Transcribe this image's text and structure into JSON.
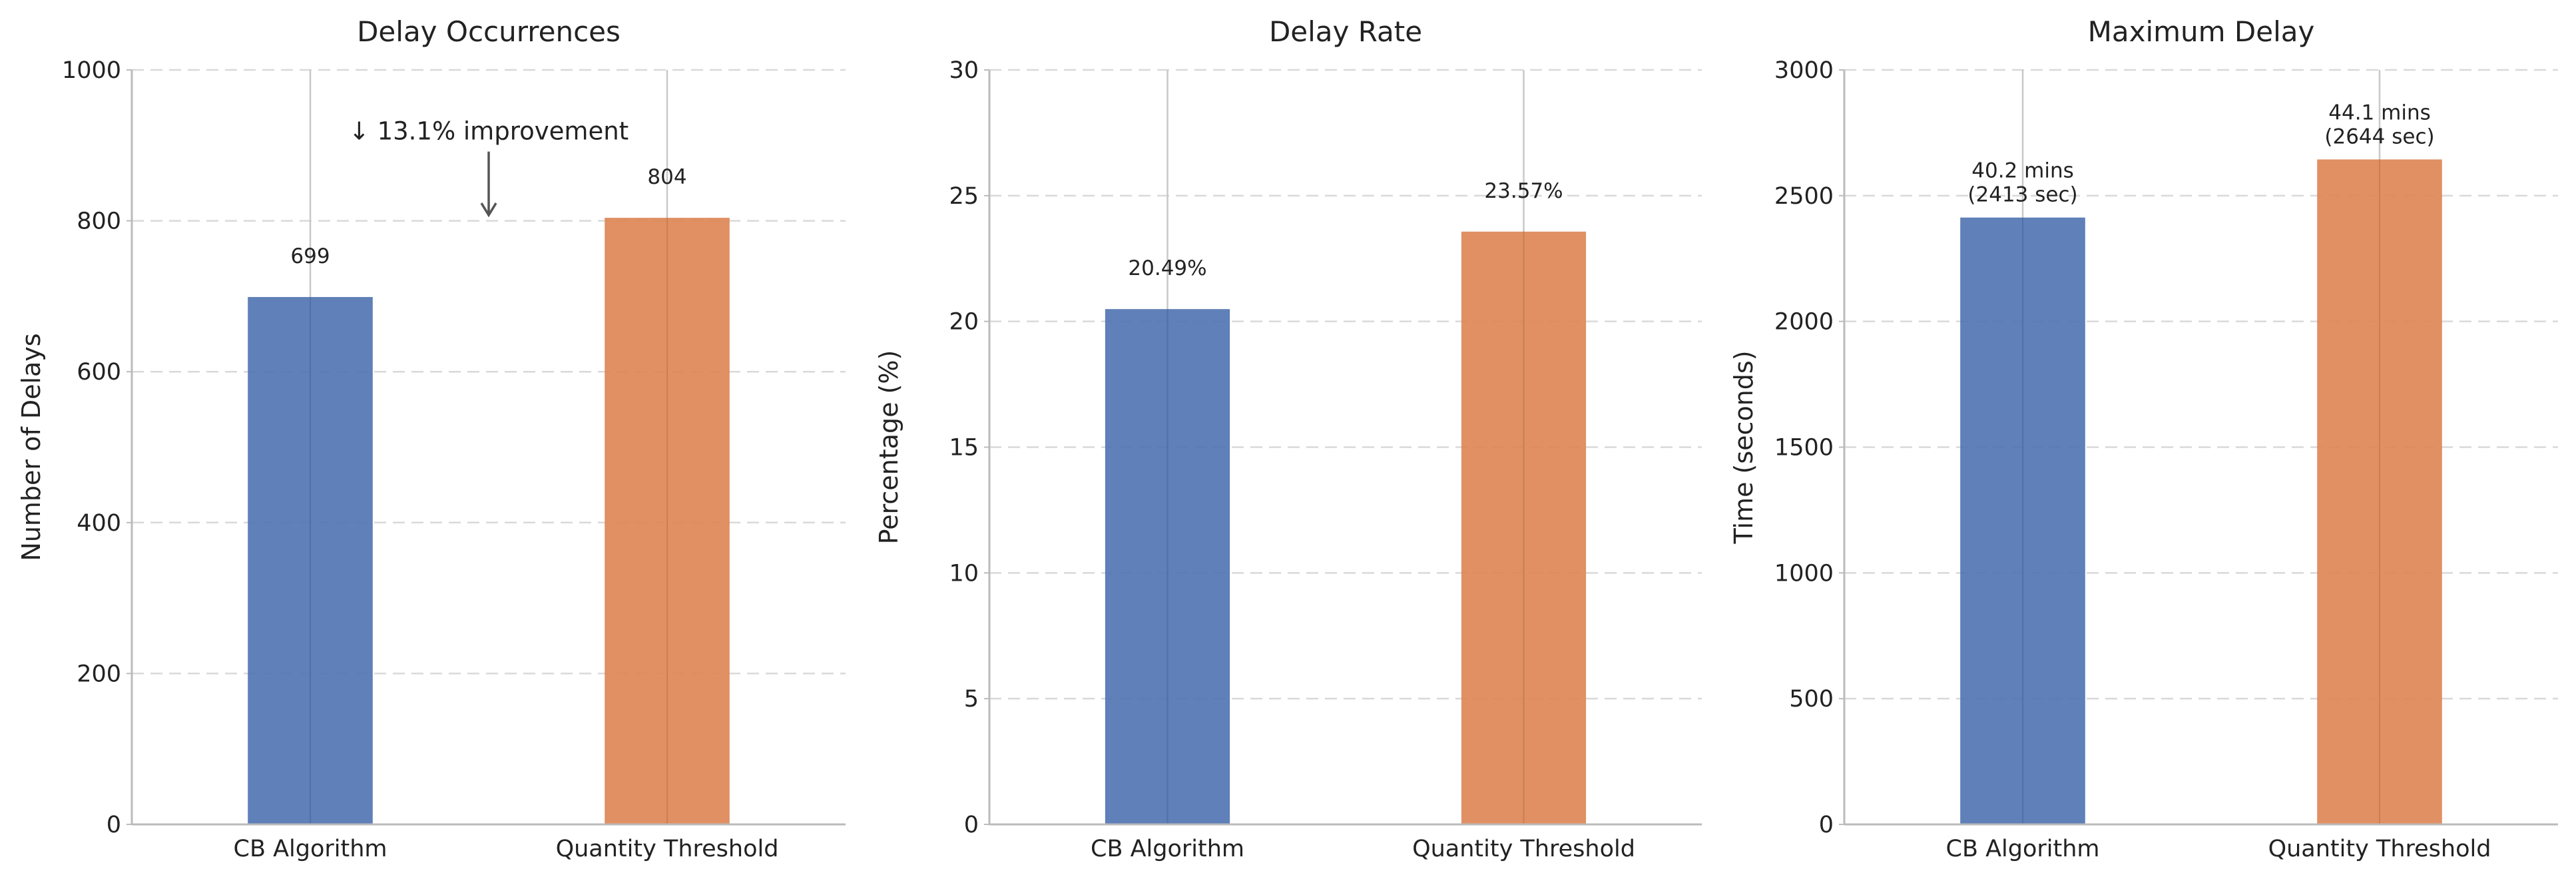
{
  "chart_data": [
    {
      "type": "bar",
      "title": "Delay Occurrences",
      "ylabel": "Number of Delays",
      "xlabel": "",
      "categories": [
        "CB Algorithm",
        "Quantity Threshold"
      ],
      "values": [
        699,
        804
      ],
      "value_labels": [
        "699",
        "804"
      ],
      "colors": [
        "#4e72b0",
        "#dd8452"
      ],
      "ylim": [
        0,
        1000
      ],
      "yticks": [
        0,
        200,
        400,
        600,
        800,
        1000
      ],
      "ytick_labels": [
        "0",
        "200",
        "400",
        "600",
        "800",
        "1000"
      ],
      "grid": "y-dashed",
      "annotation": {
        "text": "↓ 13.1% improvement",
        "arrow_from_value": 920,
        "arrow_to_value": 804
      }
    },
    {
      "type": "bar",
      "title": "Delay Rate",
      "ylabel": "Percentage (%)",
      "xlabel": "",
      "categories": [
        "CB Algorithm",
        "Quantity Threshold"
      ],
      "values": [
        20.49,
        23.57
      ],
      "value_labels": [
        "20.49%",
        "23.57%"
      ],
      "colors": [
        "#4e72b0",
        "#dd8452"
      ],
      "ylim": [
        0,
        30
      ],
      "yticks": [
        0,
        5,
        10,
        15,
        20,
        25,
        30
      ],
      "ytick_labels": [
        "0",
        "5",
        "10",
        "15",
        "20",
        "25",
        "30"
      ],
      "grid": "y-dashed"
    },
    {
      "type": "bar",
      "title": "Maximum Delay",
      "ylabel": "Time (seconds)",
      "xlabel": "",
      "categories": [
        "CB Algorithm",
        "Quantity Threshold"
      ],
      "values": [
        2413,
        2644
      ],
      "value_labels": [
        [
          "40.2 mins",
          "(2413 sec)"
        ],
        [
          "44.1 mins",
          "(2644 sec)"
        ]
      ],
      "colors": [
        "#4e72b0",
        "#dd8452"
      ],
      "ylim": [
        0,
        3000
      ],
      "yticks": [
        0,
        500,
        1000,
        1500,
        2000,
        2500,
        3000
      ],
      "ytick_labels": [
        "0",
        "500",
        "1000",
        "1500",
        "2000",
        "2500",
        "3000"
      ],
      "grid": "y-dashed"
    }
  ]
}
